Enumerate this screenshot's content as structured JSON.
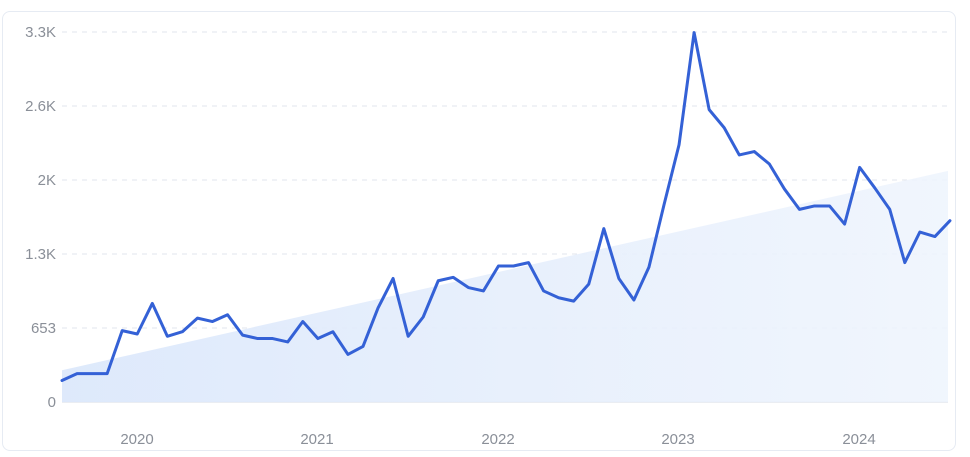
{
  "chart_data": {
    "type": "line",
    "title": "",
    "xlabel": "",
    "ylabel": "",
    "x_tick_labels": [
      "2020",
      "2021",
      "2022",
      "2023",
      "2024"
    ],
    "y_tick_labels": [
      "0",
      "653",
      "1.3K",
      "2K",
      "2.6K",
      "3.3K"
    ],
    "y_ticks": [
      0,
      653,
      1306,
      1959,
      2612,
      3265
    ],
    "ylim": [
      0,
      3265
    ],
    "grid": "horizontal dashed",
    "colors": {
      "line": "#3461d6",
      "trend_fill": "#dce8fb",
      "grid": "#e1e5ec",
      "tick_text": "#8a8f98"
    },
    "trend": {
      "start": 280,
      "end": 2040
    },
    "series": [
      {
        "values": [
          190,
          250,
          250,
          250,
          630,
          600,
          870,
          580,
          620,
          740,
          710,
          770,
          590,
          560,
          560,
          530,
          710,
          560,
          620,
          420,
          490,
          830,
          1090,
          580,
          750,
          1070,
          1100,
          1010,
          980,
          1200,
          1200,
          1230,
          980,
          920,
          890,
          1040,
          1530,
          1090,
          900,
          1190,
          1740,
          2270,
          3260,
          2580,
          2420,
          2180,
          2210,
          2100,
          1880,
          1700,
          1730,
          1730,
          1570,
          2070,
          1890,
          1700,
          1230,
          1500,
          1460,
          1600
        ]
      }
    ]
  }
}
